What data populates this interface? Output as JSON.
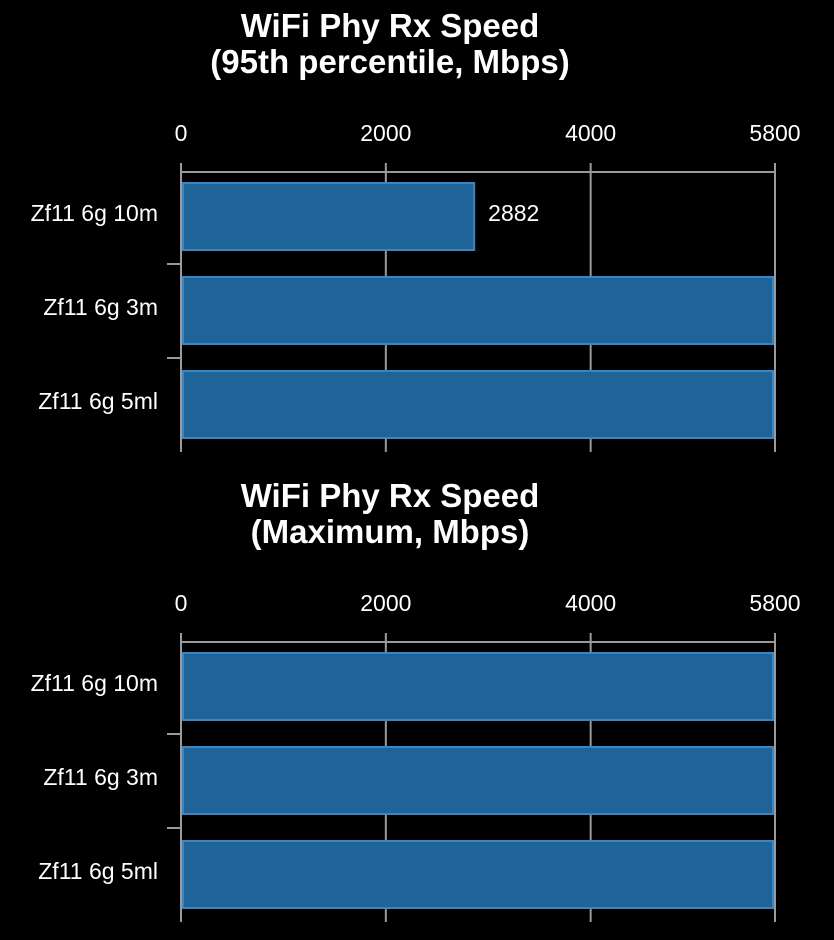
{
  "charts": [
    {
      "title_line1": "WiFi Phy Rx Speed",
      "title_line2": "(95th percentile, Mbps)"
    },
    {
      "title_line1": "WiFi Phy Rx Speed",
      "title_line2": "(Maximum, Mbps)"
    }
  ],
  "colors": {
    "bar_fill": "#1f6499",
    "bar_stroke": "#3a86c4",
    "grid": "#9a9a9a",
    "background": "#000000",
    "text": "#ffffff"
  },
  "chart_data": [
    {
      "type": "bar",
      "orientation": "horizontal",
      "title": "WiFi Phy Rx Speed (95th percentile, Mbps)",
      "categories": [
        "Zf11 6g 10m",
        "Zf11 6g 3m",
        "Zf11 6g 5ml"
      ],
      "values": [
        2882,
        5800,
        5800
      ],
      "data_labels": [
        "2882",
        "",
        ""
      ],
      "xlim": [
        0,
        5800
      ],
      "xticks": [
        0,
        2000,
        4000,
        5800
      ],
      "xtick_labels": [
        "0",
        "2000",
        "4000",
        "5800"
      ],
      "x_axis_position": "top",
      "grid": true
    },
    {
      "type": "bar",
      "orientation": "horizontal",
      "title": "WiFi Phy Rx Speed (Maximum, Mbps)",
      "categories": [
        "Zf11 6g 10m",
        "Zf11 6g 3m",
        "Zf11 6g 5ml"
      ],
      "values": [
        5800,
        5800,
        5800
      ],
      "data_labels": [
        "",
        "",
        ""
      ],
      "xlim": [
        0,
        5800
      ],
      "xticks": [
        0,
        2000,
        4000,
        5800
      ],
      "xtick_labels": [
        "0",
        "2000",
        "4000",
        "5800"
      ],
      "x_axis_position": "top",
      "grid": true
    }
  ]
}
